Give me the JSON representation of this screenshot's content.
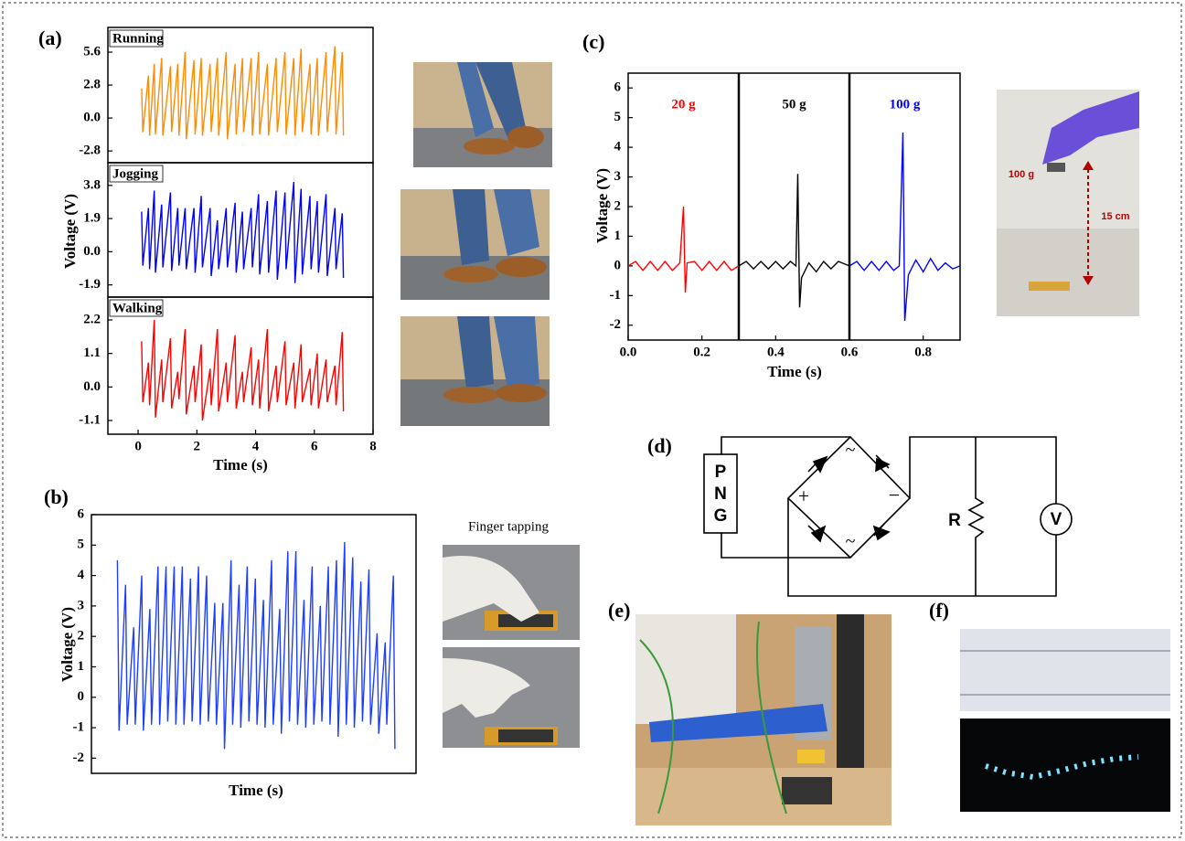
{
  "chart_data": [
    {
      "type": "line",
      "title": "Running",
      "color": "#ff8c00",
      "xlim": [
        -1.03,
        8
      ],
      "ylim": [
        -3.8,
        7.7
      ],
      "yticks": [
        -2.8,
        {
          "value": 0,
          "label": "0.0"
        },
        2.8,
        5.6
      ],
      "x": [
        0.12,
        0.16,
        0.35,
        0.39,
        0.55,
        0.59,
        0.8,
        0.84,
        1.1,
        1.14,
        1.35,
        1.39,
        1.6,
        1.64,
        1.9,
        1.94,
        2.15,
        2.19,
        2.45,
        2.49,
        2.7,
        2.74,
        3.0,
        3.04,
        3.3,
        3.34,
        3.55,
        3.59,
        3.85,
        3.89,
        4.1,
        4.14,
        4.4,
        4.44,
        4.7,
        4.74,
        5.0,
        5.04,
        5.3,
        5.34,
        5.55,
        5.59,
        5.85,
        5.89,
        6.1,
        6.14,
        6.4,
        6.44,
        6.7,
        6.74,
        6.95,
        6.99
      ],
      "values": [
        2.5,
        -1.2,
        3.6,
        -1.5,
        4.6,
        -1.4,
        5.1,
        -1.5,
        4.4,
        -1.2,
        4.6,
        -1.5,
        5.6,
        -1.8,
        4.9,
        -1.4,
        5.1,
        -1.5,
        4.6,
        -1.2,
        5.1,
        -1.5,
        5.6,
        -1.8,
        4.6,
        -1.4,
        5.1,
        -1.2,
        5.1,
        -1.5,
        5.6,
        -1.4,
        4.6,
        -1.5,
        5.1,
        -1.2,
        5.6,
        -1.4,
        5.1,
        -1.5,
        5.9,
        -1.2,
        4.6,
        -1.4,
        5.1,
        -1.5,
        5.6,
        -1.2,
        6.1,
        -1.4,
        5.6,
        -1.5
      ]
    },
    {
      "type": "line",
      "title": "Jogging",
      "ylabel": "Voltage (V)",
      "color": "#0000ff",
      "xlim": [
        -1.03,
        8
      ],
      "ylim": [
        -2.6,
        5.1
      ],
      "yticks": [
        -1.9,
        {
          "value": 0,
          "label": "0.0"
        },
        1.9,
        3.8
      ],
      "x": [
        0.12,
        0.16,
        0.35,
        0.39,
        0.55,
        0.59,
        0.8,
        0.84,
        1.1,
        1.14,
        1.35,
        1.39,
        1.6,
        1.64,
        1.9,
        1.94,
        2.15,
        2.19,
        2.45,
        2.49,
        2.7,
        2.74,
        3.0,
        3.04,
        3.3,
        3.34,
        3.55,
        3.59,
        3.85,
        3.89,
        4.1,
        4.14,
        4.4,
        4.44,
        4.7,
        4.74,
        5.0,
        5.04,
        5.3,
        5.34,
        5.55,
        5.59,
        5.85,
        5.89,
        6.1,
        6.14,
        6.4,
        6.44,
        6.7,
        6.74,
        6.95,
        6.99
      ],
      "values": [
        2.3,
        -0.8,
        2.5,
        -1.0,
        3.5,
        -1.2,
        2.7,
        -0.9,
        3.4,
        -1.1,
        2.5,
        -0.8,
        2.5,
        -1.0,
        2.5,
        -1.2,
        3.2,
        -0.9,
        2.5,
        -1.4,
        1.8,
        -1.0,
        2.5,
        -0.9,
        2.8,
        -1.2,
        2.3,
        -1.0,
        2.5,
        -0.9,
        3.3,
        -1.3,
        2.9,
        -1.2,
        3.5,
        -1.6,
        3.4,
        -1.0,
        4.0,
        -1.8,
        3.6,
        -1.3,
        3.2,
        -1.0,
        2.9,
        -1.2,
        3.3,
        -1.4,
        2.5,
        -1.0,
        2.2,
        -1.5
      ]
    },
    {
      "type": "line",
      "title": "Walking",
      "xlabel": "Time (s)",
      "color": "#ff0000",
      "xlim": [
        -1.03,
        8
      ],
      "ylim": [
        -1.55,
        2.95
      ],
      "yticks": [
        -1.1,
        {
          "value": 0,
          "label": "0.0"
        },
        1.1,
        2.2
      ],
      "xticks": [
        0,
        2,
        4,
        6,
        8
      ],
      "x": [
        0.12,
        0.16,
        0.35,
        0.39,
        0.55,
        0.59,
        0.8,
        0.84,
        1.1,
        1.14,
        1.35,
        1.39,
        1.6,
        1.64,
        1.9,
        1.94,
        2.15,
        2.19,
        2.45,
        2.49,
        2.7,
        2.74,
        3.0,
        3.04,
        3.3,
        3.34,
        3.55,
        3.59,
        3.85,
        3.89,
        4.1,
        4.14,
        4.4,
        4.44,
        4.7,
        4.74,
        5.0,
        5.04,
        5.3,
        5.34,
        5.55,
        5.59,
        5.85,
        5.89,
        6.1,
        6.14,
        6.4,
        6.44,
        6.7,
        6.74,
        6.95,
        6.99
      ],
      "values": [
        1.5,
        -0.5,
        0.8,
        -0.6,
        2.2,
        -1.0,
        0.9,
        -0.5,
        1.6,
        -0.7,
        0.5,
        -0.4,
        1.9,
        -0.9,
        0.7,
        -0.5,
        1.4,
        -1.1,
        0.6,
        -0.6,
        1.9,
        -0.8,
        0.8,
        -0.5,
        1.7,
        -0.7,
        0.5,
        -0.5,
        1.3,
        -0.6,
        0.9,
        -0.7,
        1.9,
        -0.8,
        0.7,
        -0.5,
        1.5,
        -0.6,
        0.8,
        -0.7,
        1.4,
        -0.5,
        0.6,
        -0.6,
        1.1,
        -0.7,
        0.9,
        -0.5,
        0.7,
        -0.6,
        1.8,
        -0.8
      ]
    },
    {
      "type": "line",
      "xlabel": "Time (s)",
      "ylabel": "Voltage (V)",
      "color": "#1f3fff",
      "xlim": [
        0,
        10
      ],
      "ylim": [
        -2.5,
        6
      ],
      "yticks": [
        -2,
        -1,
        0,
        1,
        2,
        3,
        4,
        5,
        6
      ],
      "x": [
        0.8,
        0.85,
        1.05,
        1.1,
        1.3,
        1.35,
        1.55,
        1.6,
        1.8,
        1.85,
        2.05,
        2.1,
        2.3,
        2.35,
        2.55,
        2.6,
        2.8,
        2.85,
        3.05,
        3.1,
        3.3,
        3.35,
        3.55,
        3.6,
        3.8,
        3.85,
        4.05,
        4.1,
        4.3,
        4.35,
        4.55,
        4.6,
        4.8,
        4.85,
        5.05,
        5.1,
        5.3,
        5.35,
        5.55,
        5.6,
        5.8,
        5.85,
        6.05,
        6.1,
        6.3,
        6.35,
        6.55,
        6.6,
        6.8,
        6.85,
        7.05,
        7.1,
        7.3,
        7.35,
        7.55,
        7.6,
        7.8,
        7.85,
        8.05,
        8.1,
        8.3,
        8.35,
        8.55,
        8.6,
        8.8,
        8.85,
        9.05,
        9.1,
        9.3,
        9.35
      ],
      "values": [
        4.5,
        -1.1,
        3.7,
        -0.9,
        2.3,
        -0.9,
        4.0,
        -1.1,
        2.9,
        -0.9,
        4.3,
        -0.9,
        4.3,
        -0.8,
        4.3,
        -0.9,
        4.3,
        -0.9,
        3.9,
        -0.8,
        4.3,
        -0.9,
        4.0,
        -0.8,
        3.1,
        -0.9,
        3.1,
        -1.7,
        4.5,
        -0.9,
        3.7,
        -1.0,
        4.3,
        -0.8,
        3.9,
        -0.9,
        3.2,
        -1.0,
        4.5,
        -0.9,
        2.9,
        -1.2,
        4.8,
        -0.8,
        4.8,
        -0.9,
        3.2,
        -1.0,
        4.3,
        -0.9,
        3.0,
        -0.8,
        4.3,
        -0.9,
        4.5,
        -1.3,
        5.1,
        -0.9,
        4.6,
        -1.0,
        3.8,
        -0.8,
        4.2,
        -0.9,
        2.1,
        -1.2,
        1.8,
        -0.9,
        4.0,
        -1.7
      ]
    },
    {
      "type": "line",
      "xlabel": "Time (s)",
      "ylabel": "Voltage (V)",
      "xlim": [
        0,
        0.9
      ],
      "ylim": [
        -2.5,
        6.5
      ],
      "xticks": [
        {
          "value": 0,
          "label": "0.0"
        },
        0.2,
        0.4,
        0.6,
        0.8
      ],
      "yticks": [
        -2,
        -1,
        0,
        1,
        2,
        3,
        4,
        5,
        6
      ],
      "dividers": [
        0.3,
        0.6
      ],
      "series": [
        {
          "name": "20 g",
          "color": "#ff0000",
          "x": [
            0,
            0.02,
            0.04,
            0.06,
            0.08,
            0.1,
            0.12,
            0.14,
            0.15,
            0.155,
            0.16,
            0.18,
            0.2,
            0.22,
            0.24,
            0.26,
            0.28,
            0.3
          ],
          "values": [
            0,
            0.15,
            -0.15,
            0.15,
            -0.15,
            0.15,
            -0.15,
            0.1,
            2.0,
            -0.9,
            0.1,
            0.15,
            -0.15,
            0.15,
            -0.15,
            0.15,
            -0.15,
            0
          ]
        },
        {
          "name": "50 g",
          "color": "#000000",
          "x": [
            0.3,
            0.32,
            0.34,
            0.36,
            0.38,
            0.4,
            0.42,
            0.44,
            0.455,
            0.46,
            0.465,
            0.47,
            0.49,
            0.51,
            0.53,
            0.55,
            0.57,
            0.6
          ],
          "values": [
            0,
            0.15,
            -0.1,
            0.15,
            -0.1,
            0.15,
            -0.1,
            0.15,
            0.0,
            3.1,
            -1.4,
            -0.4,
            0.1,
            -0.2,
            0.15,
            -0.1,
            0.15,
            0
          ]
        },
        {
          "name": "100 g",
          "color": "#0000ff",
          "x": [
            0.6,
            0.62,
            0.64,
            0.66,
            0.68,
            0.7,
            0.72,
            0.735,
            0.745,
            0.75,
            0.76,
            0.78,
            0.8,
            0.82,
            0.84,
            0.86,
            0.88,
            0.9
          ],
          "values": [
            0,
            0.15,
            -0.15,
            0.15,
            -0.15,
            0.15,
            -0.15,
            0.0,
            4.5,
            -1.85,
            -0.3,
            0.2,
            -0.2,
            0.25,
            -0.15,
            0.1,
            -0.1,
            0
          ]
        }
      ]
    }
  ],
  "figure": {
    "panel_labels": [
      "(a)",
      "(b)",
      "(c)",
      "(d)",
      "(e)",
      "(f)"
    ],
    "finger_caption": "Finger tapping",
    "weight_label": "100 g",
    "height_label": "15 cm",
    "circuit": {
      "source": [
        "P",
        "N",
        "G"
      ],
      "resistor": "R",
      "meter": "V",
      "plus": "+",
      "minus": "−",
      "ac": "~"
    }
  }
}
